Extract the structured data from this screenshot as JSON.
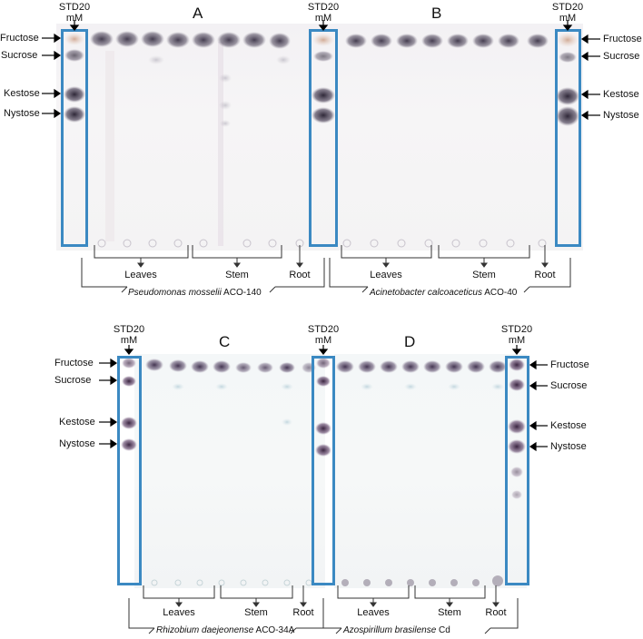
{
  "panels": [
    {
      "letter": "A",
      "organism_italic": "Pseudomonas mosselii",
      "organism_strain": " ACO-140"
    },
    {
      "letter": "B",
      "organism_italic": "Acinetobacter calcoaceticus",
      "organism_strain": " ACO-40"
    },
    {
      "letter": "C",
      "organism_italic": "Rhizobium daejeonense",
      "organism_strain": " ACO-34A"
    },
    {
      "letter": "D",
      "organism_italic": "Azospirillum brasilense",
      "organism_strain": " Cd"
    }
  ],
  "std_label_line1": "STD20",
  "std_label_line2": "mM",
  "sugars": [
    "Fructose",
    "Sucrose",
    "Kestose",
    "Nystose"
  ],
  "groups": [
    "Leaves",
    "Stem",
    "Root"
  ],
  "colors": {
    "box": "#3b89c2",
    "spot_top": "#4b4458",
    "spot_c": "#4a3a5a",
    "plate": "#f4f3f4"
  }
}
